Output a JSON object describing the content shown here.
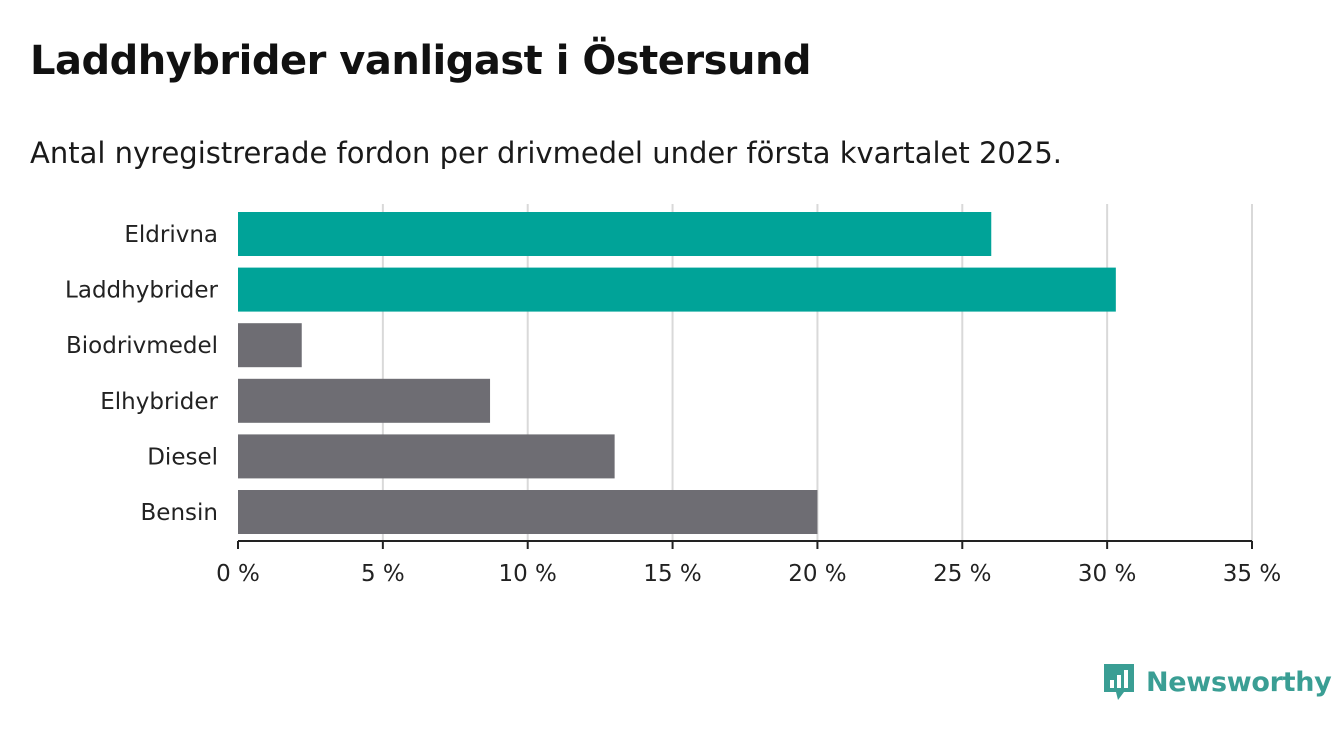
{
  "header": {
    "title": "Laddhybrider vanligast i Östersund",
    "subtitle": "Antal nyregistrerade fordon per drivmedel under första kvartalet 2025."
  },
  "brand": {
    "name": "Newsworthy",
    "icon": "newsworthy-logo-icon",
    "color": "#3a9e94"
  },
  "colors": {
    "highlight": "#00a398",
    "default": "#6e6d73"
  },
  "chart_data": {
    "type": "bar",
    "orientation": "horizontal",
    "categories": [
      "Eldrivna",
      "Laddhybrider",
      "Biodrivmedel",
      "Elhybrider",
      "Diesel",
      "Bensin"
    ],
    "values": [
      26.0,
      30.3,
      2.2,
      8.7,
      13.0,
      20.0
    ],
    "highlighted": [
      true,
      true,
      false,
      false,
      false,
      false
    ],
    "xlim": [
      0,
      35
    ],
    "xticks": [
      0,
      5,
      10,
      15,
      20,
      25,
      30,
      35
    ],
    "xtick_labels": [
      "0 %",
      "5 %",
      "10 %",
      "15 %",
      "20 %",
      "25 %",
      "30 %",
      "35 %"
    ],
    "grid": "vertical",
    "legend": "none"
  }
}
